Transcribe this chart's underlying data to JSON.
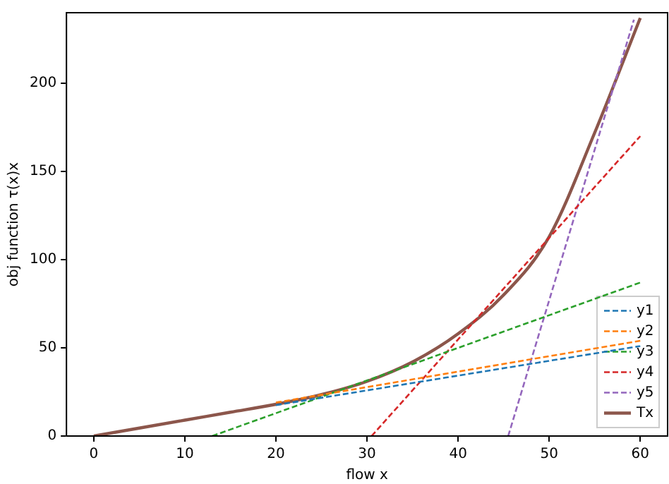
{
  "chart_data": {
    "type": "line",
    "xlabel": "flow x",
    "ylabel": "obj function τ(x)x",
    "xlim": [
      -3,
      63
    ],
    "ylim": [
      0,
      240
    ],
    "xticks": [
      0,
      10,
      20,
      30,
      40,
      50,
      60
    ],
    "yticks": [
      0,
      50,
      100,
      150,
      200
    ],
    "grid": false,
    "legend": "bottom right",
    "marker": "none",
    "series": [
      {
        "name": "y1",
        "line_style": "dashed",
        "color": "#1f77b4",
        "x": [
          20,
          60
        ],
        "values": [
          17.5,
          51
        ]
      },
      {
        "name": "y2",
        "line_style": "dashed",
        "color": "#ff7f0e",
        "x": [
          20,
          60
        ],
        "values": [
          19,
          54
        ]
      },
      {
        "name": "y3",
        "line_style": "dashed",
        "color": "#2ca02c",
        "x": [
          13,
          60
        ],
        "values": [
          0,
          87
        ]
      },
      {
        "name": "y4",
        "line_style": "dashed",
        "color": "#d62728",
        "x": [
          30.5,
          60
        ],
        "values": [
          0,
          170
        ]
      },
      {
        "name": "y5",
        "line_style": "dashed",
        "color": "#9467bd",
        "x": [
          45.5,
          59.3
        ],
        "values": [
          0,
          236
        ]
      },
      {
        "name": "Tx",
        "line_style": "solid",
        "color": "#8c564b",
        "x": [
          0,
          5,
          10,
          15,
          20,
          25,
          30,
          35,
          40,
          45,
          50,
          55,
          60
        ],
        "values": [
          0,
          4.5,
          9,
          13.5,
          18,
          23.5,
          31,
          42,
          58,
          80,
          113,
          172,
          237
        ]
      }
    ]
  }
}
